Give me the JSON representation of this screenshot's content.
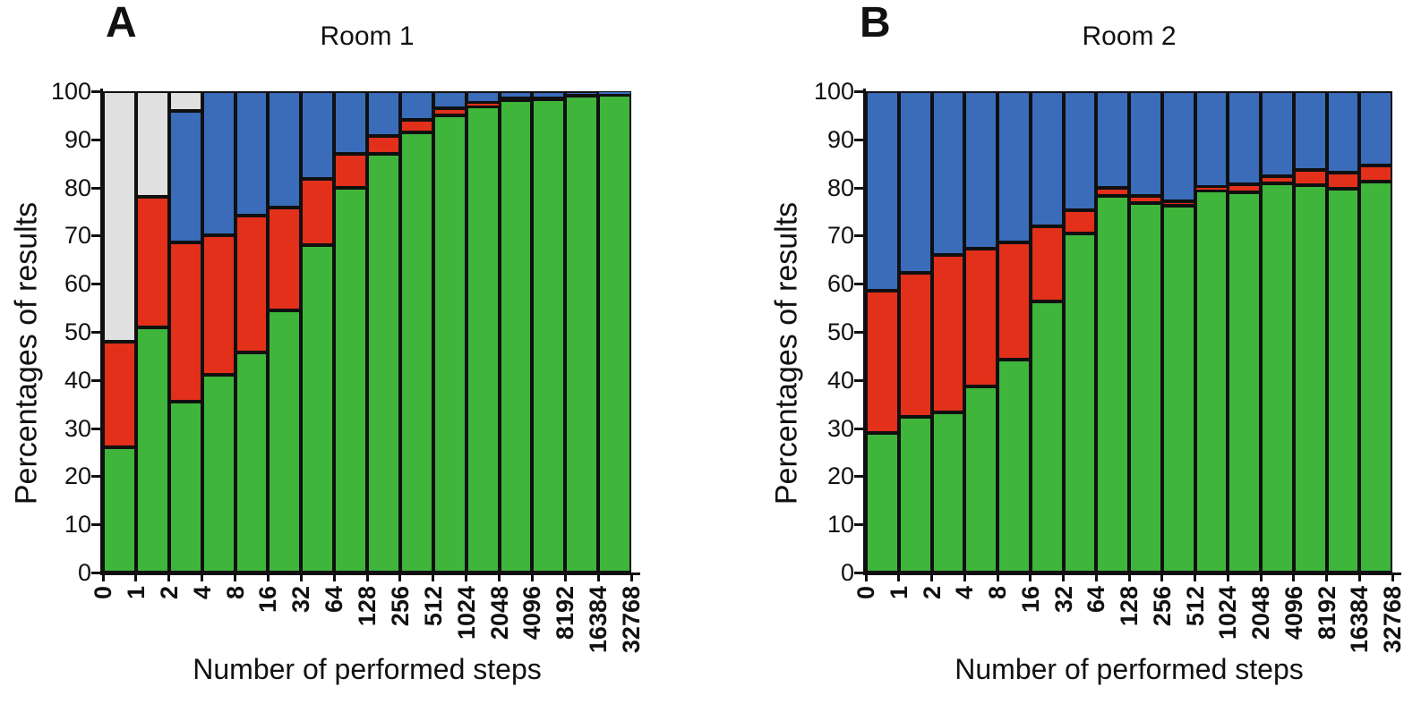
{
  "chart_data": [
    {
      "type": "bar",
      "subtype": "stacked-percentage",
      "panel_label": "A",
      "title": "Room 1",
      "xlabel": "Number of performed steps",
      "ylabel": "Percentages of results",
      "ylim": [
        0,
        100
      ],
      "yticks": [
        0,
        10,
        20,
        30,
        40,
        50,
        60,
        70,
        80,
        90,
        100
      ],
      "x_tick_labels": [
        "0",
        "1",
        "2",
        "4",
        "8",
        "16",
        "32",
        "64",
        "128",
        "256",
        "512",
        "1024",
        "2048",
        "4096",
        "8192",
        "16384",
        "32768"
      ],
      "note": "16 stacked bars; each bar spans the interval between consecutive x tick labels; x ticks sit at bar edges; grid off; no legend shown",
      "series": [
        {
          "name": "green",
          "color": "#3fb53c",
          "values": [
            26,
            51,
            35.5,
            41,
            45.8,
            54.5,
            68,
            80,
            87,
            91.4,
            95,
            96.8,
            98.2,
            98.4,
            99,
            99.2
          ]
        },
        {
          "name": "red",
          "color": "#e2301b",
          "values": [
            22,
            27,
            33,
            29,
            28.4,
            21.3,
            13.7,
            7,
            3.7,
            2.6,
            1.5,
            0.8,
            0.3,
            0.2,
            0,
            0
          ]
        },
        {
          "name": "blue",
          "color": "#3a6cba",
          "values": [
            0,
            0,
            27.5,
            30,
            25.8,
            24.2,
            18.3,
            13,
            9.3,
            6,
            3.5,
            2.4,
            1.5,
            1.4,
            1,
            0.8
          ]
        },
        {
          "name": "gray",
          "color": "#e0e0e0",
          "values": [
            52,
            22,
            4,
            0,
            0,
            0,
            0,
            0,
            0,
            0,
            0,
            0,
            0,
            0,
            0,
            0
          ]
        }
      ]
    },
    {
      "type": "bar",
      "subtype": "stacked-percentage",
      "panel_label": "B",
      "title": "Room 2",
      "xlabel": "Number of performed steps",
      "ylabel": "Percentages of results",
      "ylim": [
        0,
        100
      ],
      "yticks": [
        0,
        10,
        20,
        30,
        40,
        50,
        60,
        70,
        80,
        90,
        100
      ],
      "x_tick_labels": [
        "0",
        "1",
        "2",
        "4",
        "8",
        "16",
        "32",
        "64",
        "128",
        "256",
        "512",
        "1024",
        "2048",
        "4096",
        "8192",
        "16384",
        "32768"
      ],
      "note": "16 stacked bars; each bar spans the interval between consecutive x tick labels; x ticks sit at bar edges; grid off; no legend shown",
      "series": [
        {
          "name": "green",
          "color": "#3fb53c",
          "values": [
            29,
            32.4,
            33.2,
            38.6,
            44.2,
            56.4,
            70.5,
            78.2,
            76.8,
            76.2,
            79.3,
            79,
            80.9,
            80.4,
            79.7,
            81.2
          ]
        },
        {
          "name": "red",
          "color": "#e2301b",
          "values": [
            29.6,
            29.8,
            32.8,
            28.7,
            24.4,
            15.6,
            4.8,
            1.8,
            1.5,
            1,
            0.9,
            1.6,
            1.5,
            3.3,
            3.3,
            3.3
          ]
        },
        {
          "name": "blue",
          "color": "#3a6cba",
          "values": [
            41.4,
            37.8,
            34,
            32.7,
            31.4,
            28,
            24.7,
            20,
            21.7,
            22.8,
            19.8,
            19.4,
            17.6,
            16.3,
            17,
            15.5
          ]
        }
      ]
    }
  ]
}
